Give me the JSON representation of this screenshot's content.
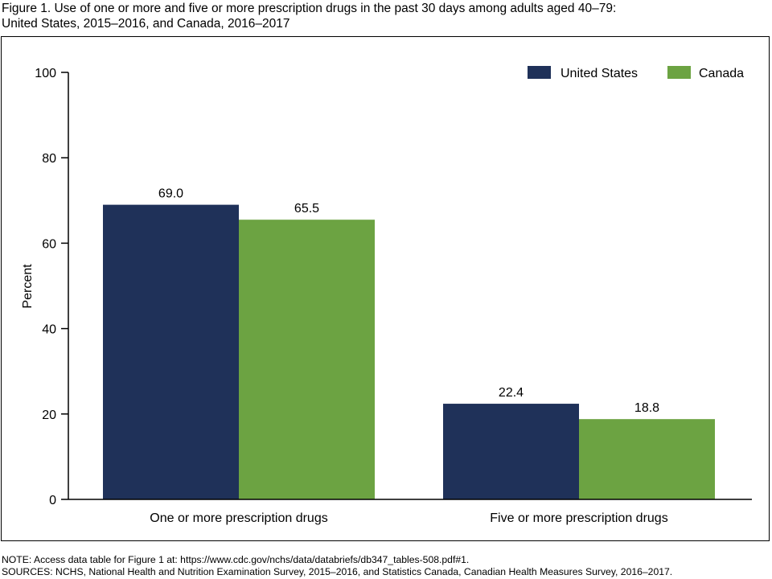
{
  "figure": {
    "title_line1": "Figure 1. Use of one or more and five or more prescription drugs in the past 30 days among adults aged 40–79:",
    "title_line2": "United States, 2015–2016, and Canada, 2016–2017"
  },
  "notes": {
    "note": "NOTE: Access data table for Figure 1 at: https://www.cdc.gov/nchs/data/databriefs/db347_tables-508.pdf#1.",
    "sources": "SOURCES: NCHS, National Health and Nutrition Examination Survey, 2015–2016, and Statistics Canada, Canadian Health Measures Survey, 2016–2017."
  },
  "colors": {
    "united_states": "#1f3159",
    "canada": "#6ca342"
  },
  "chart_data": {
    "type": "bar",
    "categories": [
      "One or more prescription drugs",
      "Five or more prescription drugs"
    ],
    "series": [
      {
        "name": "United States",
        "values": [
          69.0,
          22.4
        ],
        "labels": [
          "69.0",
          "22.4"
        ]
      },
      {
        "name": "Canada",
        "values": [
          65.5,
          18.8
        ],
        "labels": [
          "65.5",
          "18.8"
        ]
      }
    ],
    "ylabel": "Percent",
    "xlabel": "",
    "ylim": [
      0,
      100
    ],
    "yticks": [
      0,
      20,
      40,
      60,
      80,
      100
    ],
    "grid": false,
    "legend_position": "top-right"
  }
}
